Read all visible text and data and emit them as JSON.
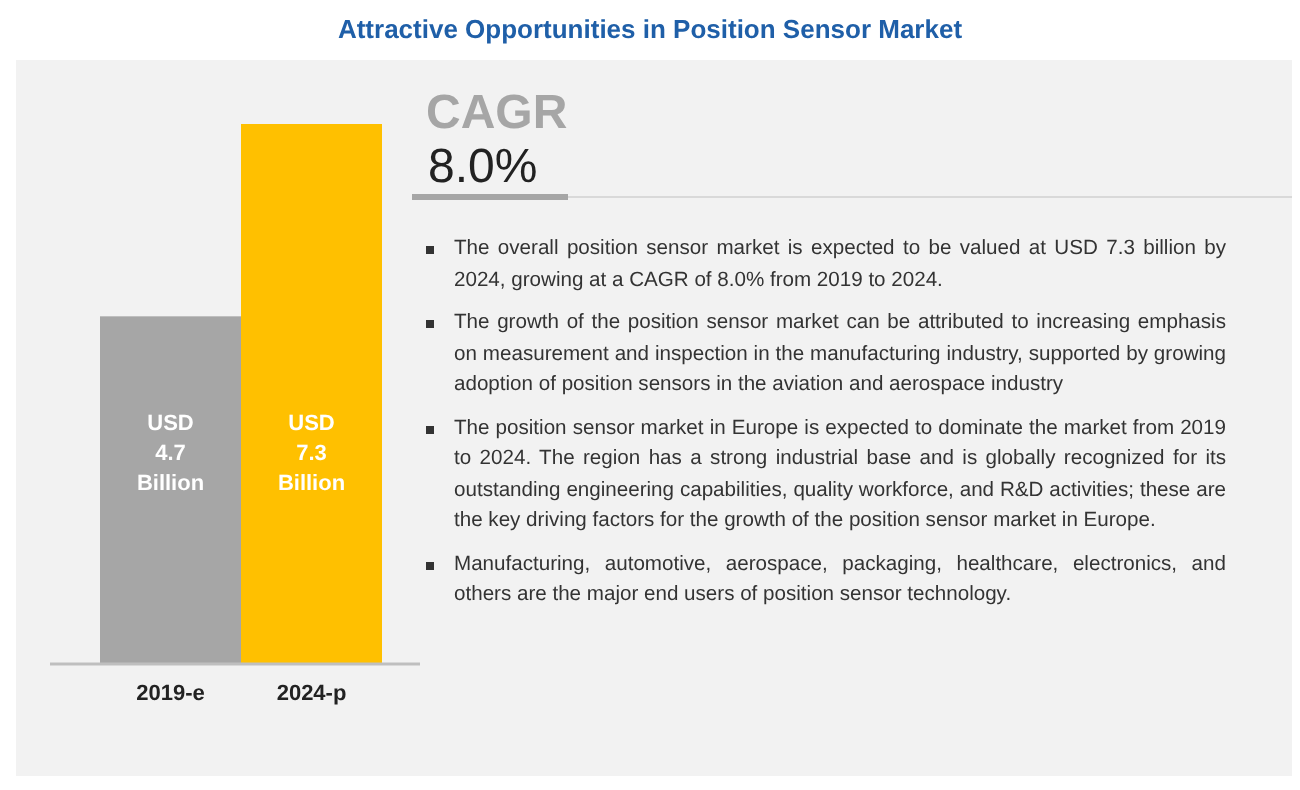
{
  "chart_data": {
    "type": "bar",
    "title": "Attractive Opportunities in Position Sensor Market",
    "categories": [
      "2019-e",
      "2024-p"
    ],
    "values": [
      4.7,
      7.3
    ],
    "colors": [
      "#a6a6a6",
      "#ffc000"
    ],
    "value_labels": [
      "USD 4.7 Billion",
      "USD 7.3 Billion"
    ],
    "annotations": [
      "CAGR",
      "8.0%",
      "The overall position sensor market is expected to be valued at USD 7.3 billion by 2024, growing at a CAGR of 8.0% from 2019 to 2024.",
      "The growth of the position sensor market can be attributed to increasing emphasis on measurement and inspection in the manufacturing industry, supported by growing adoption of position sensors in the aviation and aerospace industry",
      "The position sensor market in Europe is expected to dominate the market from 2019 to 2024. The region has a strong industrial base and is globally recognized for its outstanding engineering capabilities, quality workforce, and R&D activities; these are the key driving factors for the growth of the position sensor market in Europe.",
      "Manufacturing, automotive, aerospace, packaging, healthcare, electronics, and others are the major end users of position sensor technology."
    ]
  }
}
